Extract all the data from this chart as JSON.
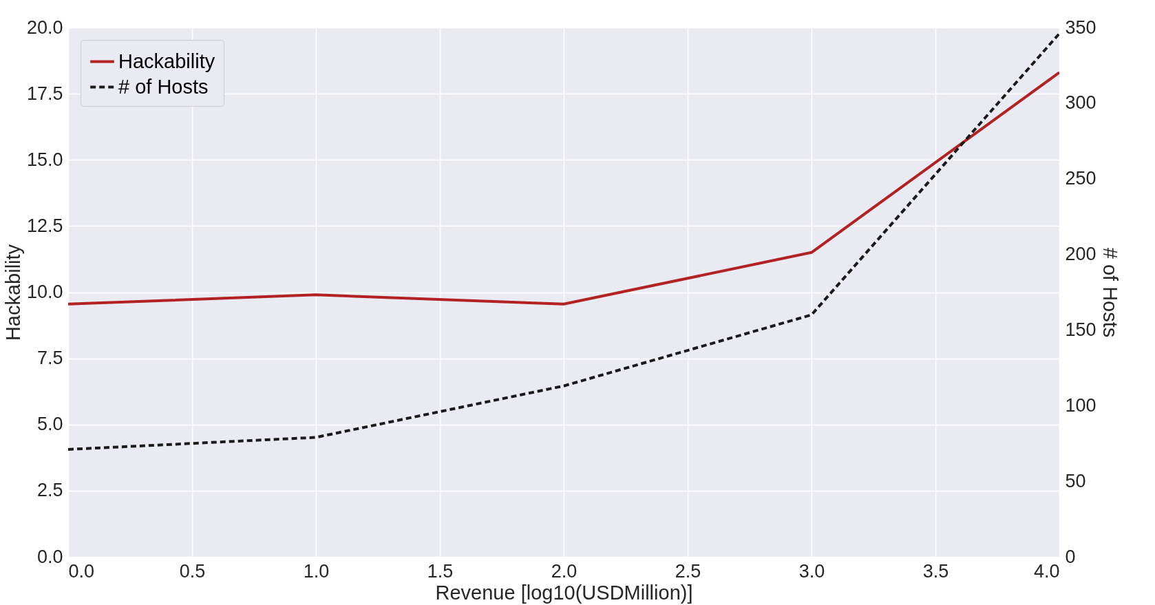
{
  "chart_data": {
    "type": "line",
    "xlabel": "Revenue [log10(USDMillion)]",
    "ylabel": "Hackability",
    "y2label": "# of Hosts",
    "x": [
      0,
      1,
      2,
      3,
      4
    ],
    "series": [
      {
        "name": "Hackability",
        "color": "#b22222",
        "line_style": "solid",
        "values": [
          9.55,
          9.9,
          9.55,
          11.5,
          18.3
        ]
      },
      {
        "name": "# of Hosts",
        "color": "#1a1a1a",
        "line_style": "dashed",
        "axis": "y2",
        "values": [
          71,
          79,
          113,
          160,
          346
        ]
      }
    ],
    "xlim": [
      0,
      4
    ],
    "xticks": [
      {
        "value": 0,
        "label": "0.0"
      },
      0.5,
      {
        "value": 1,
        "label": "1.0"
      },
      1.5,
      {
        "value": 2,
        "label": "2.0"
      },
      2.5,
      {
        "value": 3,
        "label": "3.0"
      },
      3.5,
      {
        "value": 4,
        "label": "4.0"
      }
    ],
    "ylim": [
      0,
      20
    ],
    "yticks": [
      {
        "value": 0,
        "label": "0.0"
      },
      2.5,
      {
        "value": 5,
        "label": "5.0"
      },
      7.5,
      {
        "value": 10,
        "label": "10.0"
      },
      12.5,
      {
        "value": 15,
        "label": "15.0"
      },
      17.5,
      {
        "value": 20,
        "label": "20.0"
      }
    ],
    "y2lim": [
      0,
      350
    ],
    "y2ticks": [
      0,
      50,
      100,
      150,
      200,
      250,
      300,
      350
    ],
    "grid": true,
    "legend": "top left"
  }
}
